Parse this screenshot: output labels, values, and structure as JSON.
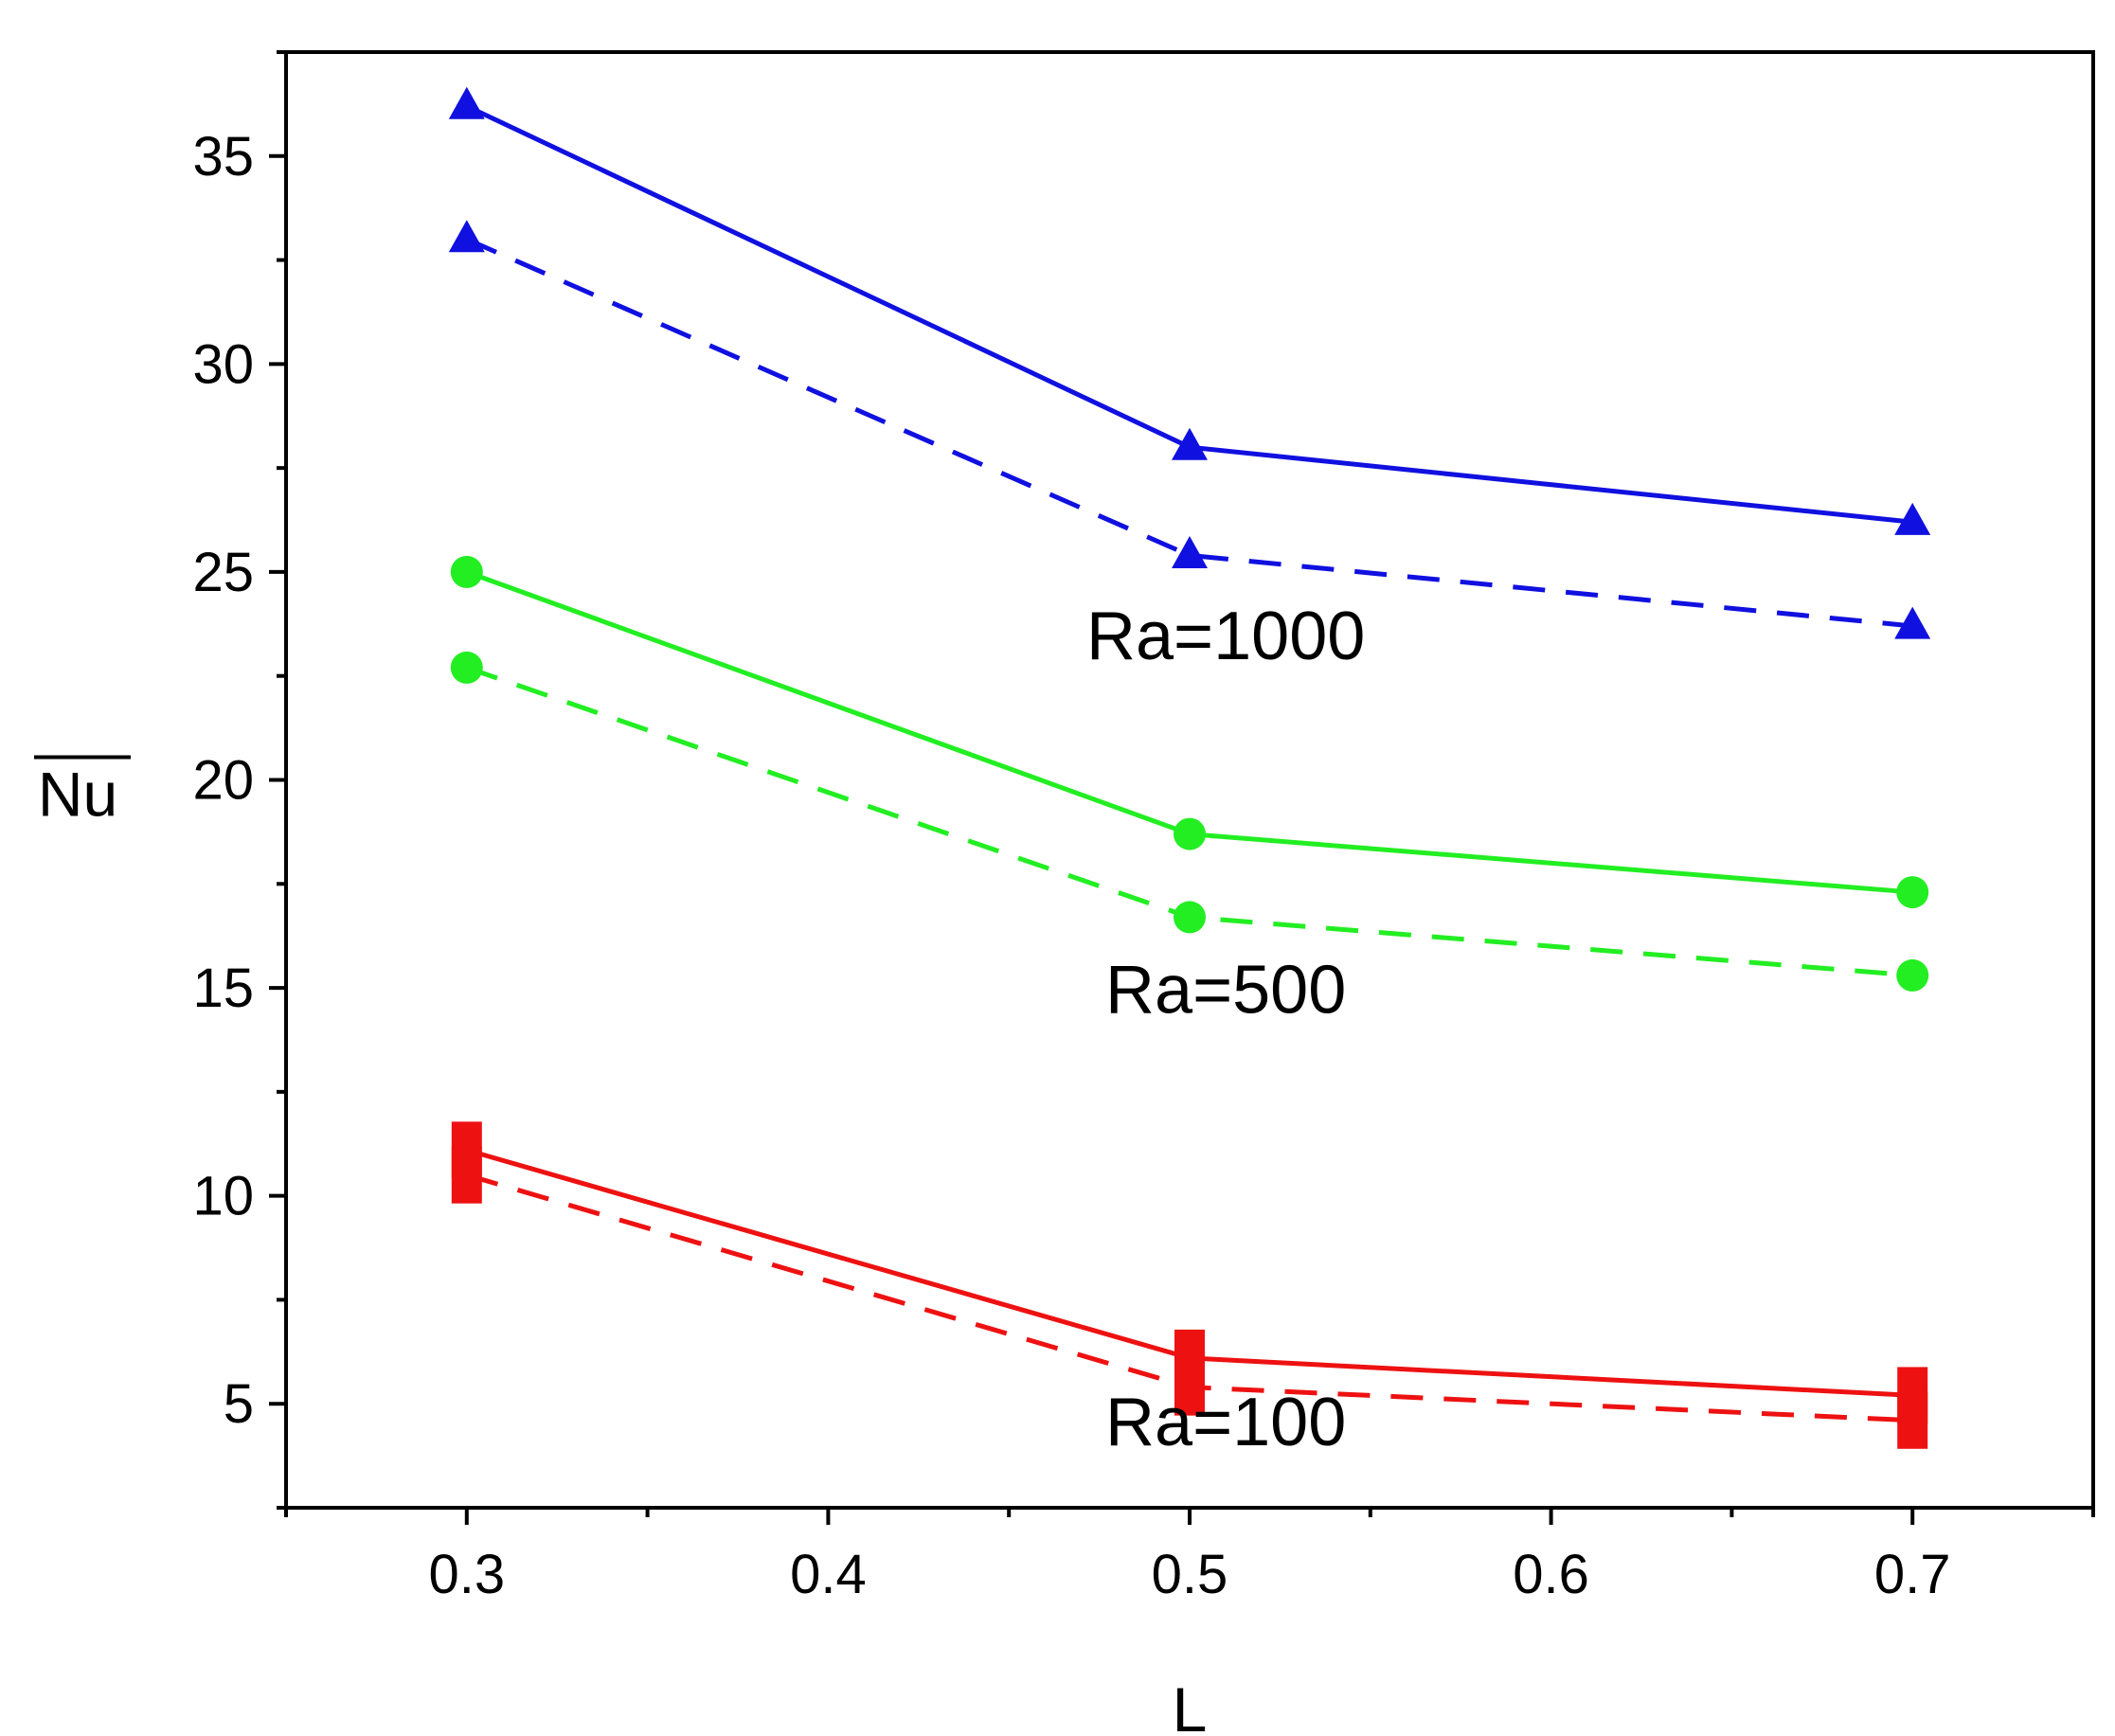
{
  "chart_data": {
    "type": "line",
    "title": "",
    "xlabel": "L",
    "ylabel": "Nu",
    "ylabel_overline": true,
    "xlim": [
      0.25,
      0.75
    ],
    "ylim": [
      2.5,
      37.5
    ],
    "x_ticks": [
      0.3,
      0.4,
      0.5,
      0.6,
      0.7
    ],
    "x_tick_labels": [
      "0.3",
      "0.4",
      "0.5",
      "0.6",
      "0.7"
    ],
    "y_ticks": [
      5,
      10,
      15,
      20,
      25,
      30,
      35
    ],
    "y_tick_labels": [
      "5",
      "10",
      "15",
      "20",
      "25",
      "30",
      "35"
    ],
    "grid": false,
    "x": [
      0.3,
      0.5,
      0.7
    ],
    "series": [
      {
        "group": "Ra=1000",
        "style": "solid",
        "marker": "triangle",
        "color": "#1010e0",
        "values": [
          36.2,
          28.0,
          26.2
        ]
      },
      {
        "group": "Ra=1000",
        "style": "dashed",
        "marker": "triangle",
        "color": "#1010e0",
        "values": [
          33.0,
          25.4,
          23.7
        ]
      },
      {
        "group": "Ra=500",
        "style": "solid",
        "marker": "circle",
        "color": "#22ee22",
        "values": [
          25.0,
          18.7,
          17.3
        ]
      },
      {
        "group": "Ra=500",
        "style": "dashed",
        "marker": "circle",
        "color": "#22ee22",
        "values": [
          22.7,
          16.7,
          15.3
        ]
      },
      {
        "group": "Ra=100",
        "style": "solid",
        "marker": "square",
        "color": "#ee1111",
        "values": [
          11.1,
          6.1,
          5.2
        ]
      },
      {
        "group": "Ra=100",
        "style": "dashed",
        "marker": "square",
        "color": "#ee1111",
        "values": [
          10.5,
          5.4,
          4.6
        ]
      }
    ],
    "annotations": [
      {
        "text": "Ra=1000",
        "x": 0.51,
        "y": 22.9
      },
      {
        "text": "Ra=500",
        "x": 0.51,
        "y": 14.4
      },
      {
        "text": "Ra=100",
        "x": 0.51,
        "y": 4.0
      }
    ]
  }
}
